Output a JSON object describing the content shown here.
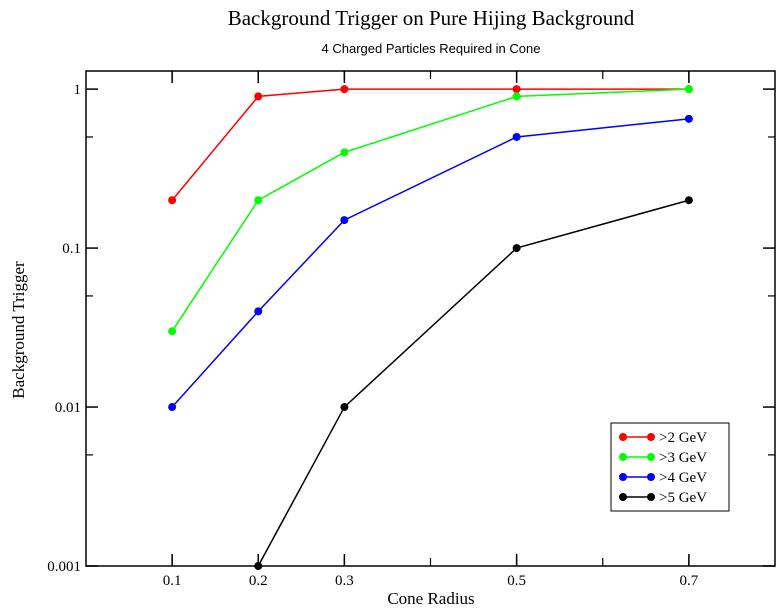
{
  "chart_data": {
    "type": "line",
    "title": "Background Trigger on Pure Hijing Background",
    "subtitle": "4 Charged Particles Required in Cone",
    "xlabel": "Cone Radius",
    "ylabel": "Background Trigger",
    "x_ticks": [
      "0.1",
      "0.2",
      "0.3",
      "0.5",
      "0.7"
    ],
    "x_tick_values": [
      0.1,
      0.2,
      0.3,
      0.5,
      0.7
    ],
    "y_ticks": [
      "0.001",
      "0.01",
      "0.1",
      "1"
    ],
    "y_tick_values": [
      0.001,
      0.01,
      0.1,
      1
    ],
    "xlim": [
      0.0,
      0.8
    ],
    "ylim": [
      0.001,
      1.3
    ],
    "y_scale": "log",
    "grid": false,
    "legend_position": "bottom-right",
    "series": [
      {
        "name": ">2 GeV",
        "color": "#ff0000",
        "x": [
          0.1,
          0.2,
          0.3,
          0.5,
          0.7
        ],
        "y": [
          0.2,
          0.9,
          1.0,
          1.0,
          1.0
        ]
      },
      {
        "name": ">3 GeV",
        "color": "#00ff00",
        "x": [
          0.1,
          0.2,
          0.3,
          0.5,
          0.7
        ],
        "y": [
          0.03,
          0.2,
          0.4,
          0.9,
          1.0
        ]
      },
      {
        "name": ">4 GeV",
        "color": "#0000ff",
        "x": [
          0.1,
          0.2,
          0.3,
          0.5,
          0.7
        ],
        "y": [
          0.01,
          0.04,
          0.15,
          0.5,
          0.65
        ]
      },
      {
        "name": ">5 GeV",
        "color": "#000000",
        "x": [
          0.2,
          0.3,
          0.5,
          0.7
        ],
        "y": [
          0.001,
          0.01,
          0.1,
          0.2
        ]
      }
    ]
  }
}
